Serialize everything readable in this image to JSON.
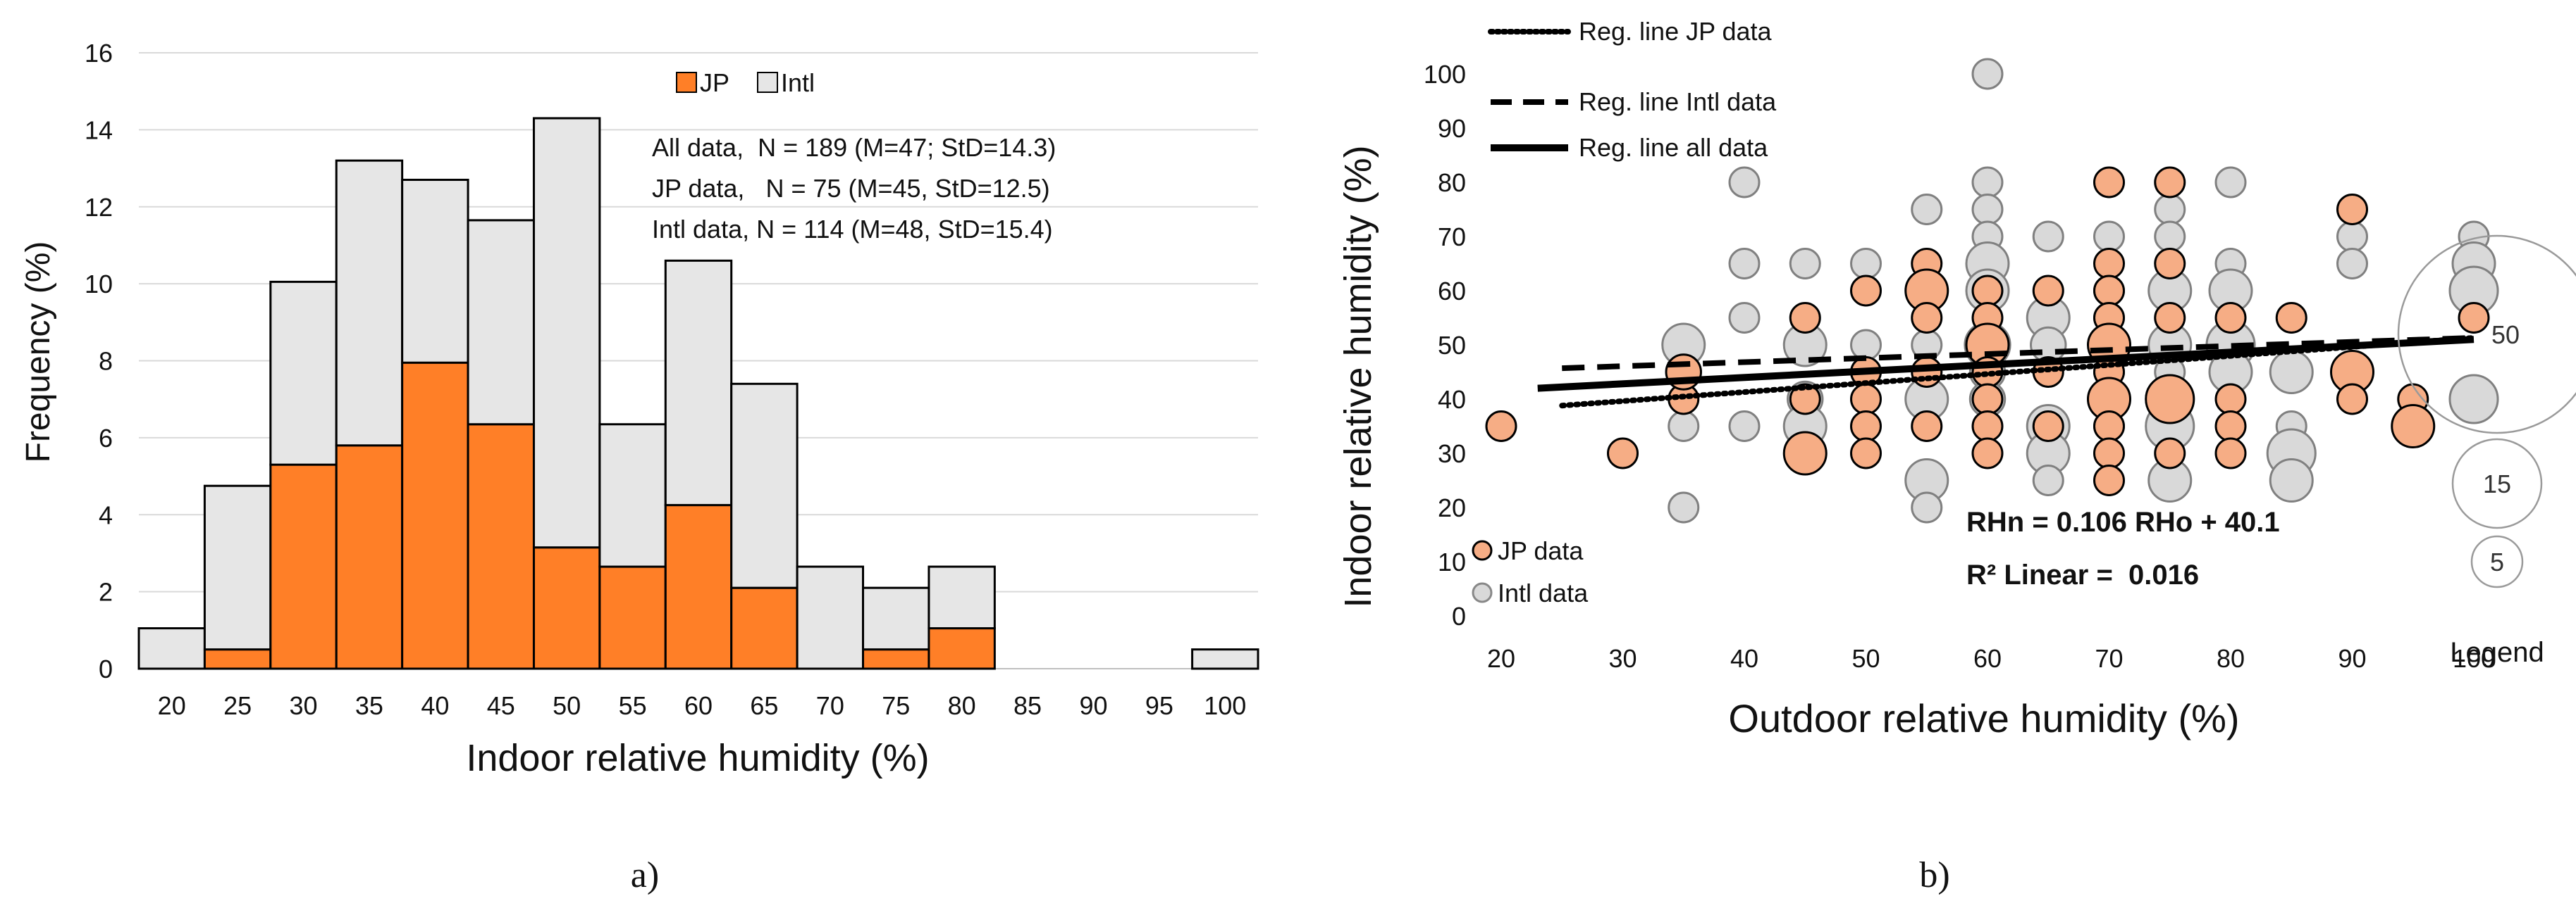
{
  "captions": [
    "a)",
    "b)"
  ],
  "chart_data": [
    {
      "type": "bar",
      "stacked": true,
      "xlabel": "Indoor relative humidity (%)",
      "ylabel": "Frequency (%)",
      "ylim": [
        0,
        16
      ],
      "yticks": [
        0,
        2,
        4,
        6,
        8,
        10,
        12,
        14,
        16
      ],
      "categories": [
        "20",
        "25",
        "30",
        "35",
        "40",
        "45",
        "50",
        "55",
        "60",
        "65",
        "70",
        "75",
        "80",
        "85",
        "90",
        "95",
        "100"
      ],
      "series": [
        {
          "name": "JP",
          "color": "#ff7f27",
          "values": [
            0,
            0.5,
            5.3,
            5.8,
            7.95,
            6.35,
            3.15,
            2.65,
            4.25,
            2.1,
            0,
            0.5,
            1.05,
            0,
            0,
            0,
            0
          ]
        },
        {
          "name": "Intl",
          "color": "#e6e6e6",
          "values": [
            1.05,
            4.25,
            4.75,
            7.4,
            4.75,
            5.3,
            11.15,
            3.7,
            6.35,
            5.3,
            2.65,
            1.6,
            1.6,
            0,
            0,
            0,
            0.5
          ]
        }
      ],
      "legend": {
        "position": "top-center",
        "items": [
          "JP",
          "Intl"
        ]
      },
      "annotations": [
        "All data,  N = 189 (M=47; StD=14.3)",
        "JP data,   N = 75 (M=45, StD=12.5)",
        "Intl data, N = 114 (M=48, StD=15.4)"
      ]
    },
    {
      "type": "scatter",
      "bubble": true,
      "xlabel": "Outdoor relative humidity (%)",
      "ylabel": "Indoor relative humidity (%)",
      "xlim": [
        20,
        100
      ],
      "ylim": [
        0,
        100
      ],
      "xticks": [
        20,
        30,
        40,
        50,
        60,
        70,
        80,
        90,
        100
      ],
      "yticks": [
        0,
        10,
        20,
        30,
        40,
        50,
        60,
        70,
        80,
        90,
        100
      ],
      "series": [
        {
          "name": "JP data",
          "color": "#f6ad85",
          "points": [
            [
              20,
              35,
              1
            ],
            [
              30,
              30,
              1
            ],
            [
              35,
              40,
              1
            ],
            [
              35,
              45,
              2
            ],
            [
              45,
              55,
              1
            ],
            [
              45,
              30,
              4
            ],
            [
              45,
              40,
              1
            ],
            [
              50,
              60,
              1
            ],
            [
              50,
              45,
              1
            ],
            [
              50,
              40,
              1
            ],
            [
              50,
              35,
              1
            ],
            [
              50,
              30,
              1
            ],
            [
              55,
              65,
              1
            ],
            [
              55,
              60,
              4
            ],
            [
              55,
              55,
              1
            ],
            [
              55,
              45,
              1
            ],
            [
              55,
              35,
              1
            ],
            [
              60,
              60,
              1
            ],
            [
              60,
              55,
              1
            ],
            [
              60,
              50,
              4
            ],
            [
              60,
              45,
              1
            ],
            [
              60,
              40,
              1
            ],
            [
              60,
              35,
              1
            ],
            [
              60,
              30,
              1
            ],
            [
              65,
              60,
              1
            ],
            [
              65,
              45,
              1
            ],
            [
              65,
              35,
              1
            ],
            [
              70,
              80,
              1
            ],
            [
              70,
              65,
              1
            ],
            [
              70,
              60,
              1
            ],
            [
              70,
              55,
              1
            ],
            [
              70,
              50,
              4
            ],
            [
              70,
              45,
              1
            ],
            [
              70,
              40,
              4
            ],
            [
              70,
              35,
              1
            ],
            [
              70,
              30,
              1
            ],
            [
              70,
              25,
              1
            ],
            [
              75,
              80,
              1
            ],
            [
              75,
              65,
              1
            ],
            [
              75,
              55,
              1
            ],
            [
              75,
              40,
              6
            ],
            [
              75,
              30,
              1
            ],
            [
              80,
              55,
              1
            ],
            [
              80,
              40,
              1
            ],
            [
              80,
              35,
              1
            ],
            [
              80,
              30,
              1
            ],
            [
              85,
              55,
              1
            ],
            [
              90,
              75,
              1
            ],
            [
              90,
              45,
              4
            ],
            [
              90,
              40,
              1
            ],
            [
              95,
              40,
              1
            ],
            [
              95,
              35,
              4
            ],
            [
              100,
              55,
              1
            ]
          ]
        },
        {
          "name": "Intl data",
          "color": "#d9d9d9",
          "points": [
            [
              35,
              50,
              4
            ],
            [
              35,
              35,
              1
            ],
            [
              35,
              20,
              1
            ],
            [
              40,
              80,
              1
            ],
            [
              40,
              65,
              1
            ],
            [
              40,
              55,
              1
            ],
            [
              40,
              35,
              1
            ],
            [
              45,
              65,
              1
            ],
            [
              45,
              50,
              4
            ],
            [
              45,
              40,
              2
            ],
            [
              45,
              35,
              4
            ],
            [
              50,
              65,
              1
            ],
            [
              50,
              50,
              1
            ],
            [
              50,
              45,
              1
            ],
            [
              55,
              75,
              1
            ],
            [
              55,
              50,
              1
            ],
            [
              55,
              40,
              4
            ],
            [
              55,
              25,
              4
            ],
            [
              55,
              20,
              1
            ],
            [
              60,
              100,
              1
            ],
            [
              60,
              80,
              1
            ],
            [
              60,
              75,
              1
            ],
            [
              60,
              70,
              1
            ],
            [
              60,
              65,
              4
            ],
            [
              60,
              60,
              4
            ],
            [
              60,
              50,
              5
            ],
            [
              60,
              45,
              2
            ],
            [
              60,
              40,
              2
            ],
            [
              65,
              70,
              1
            ],
            [
              65,
              55,
              4
            ],
            [
              65,
              50,
              2
            ],
            [
              65,
              35,
              4
            ],
            [
              65,
              30,
              4
            ],
            [
              65,
              25,
              1
            ],
            [
              70,
              70,
              1
            ],
            [
              70,
              60,
              1
            ],
            [
              70,
              55,
              1
            ],
            [
              70,
              45,
              1
            ],
            [
              70,
              35,
              1
            ],
            [
              75,
              75,
              1
            ],
            [
              75,
              70,
              1
            ],
            [
              75,
              60,
              4
            ],
            [
              75,
              50,
              4
            ],
            [
              75,
              45,
              1
            ],
            [
              75,
              35,
              6
            ],
            [
              75,
              25,
              4
            ],
            [
              80,
              80,
              1
            ],
            [
              80,
              65,
              1
            ],
            [
              80,
              60,
              4
            ],
            [
              80,
              50,
              6
            ],
            [
              80,
              45,
              4
            ],
            [
              85,
              45,
              4
            ],
            [
              85,
              35,
              1
            ],
            [
              85,
              30,
              6
            ],
            [
              85,
              25,
              4
            ],
            [
              90,
              70,
              1
            ],
            [
              90,
              65,
              1
            ],
            [
              100,
              70,
              1
            ],
            [
              100,
              65,
              4
            ],
            [
              100,
              60,
              6
            ],
            [
              100,
              40,
              6
            ]
          ]
        }
      ],
      "regression_lines": [
        {
          "name": "Reg. line JP data",
          "style": "dotted",
          "x": [
            25,
            100
          ],
          "y": [
            38.8,
            51.3
          ]
        },
        {
          "name": "Reg. line Intl data",
          "style": "dashed",
          "x": [
            25,
            100
          ],
          "y": [
            45.7,
            51.3
          ]
        },
        {
          "name": "Reg. line all data",
          "style": "solid",
          "x": [
            23,
            100
          ],
          "y": [
            42.0,
            51.0
          ]
        }
      ],
      "equation": "RHn = 0.106 RHo + 40.1",
      "r2_label": "R² Linear =  0.016",
      "size_legend": {
        "title": "Legend",
        "sizes": [
          50,
          15,
          5
        ]
      }
    }
  ]
}
